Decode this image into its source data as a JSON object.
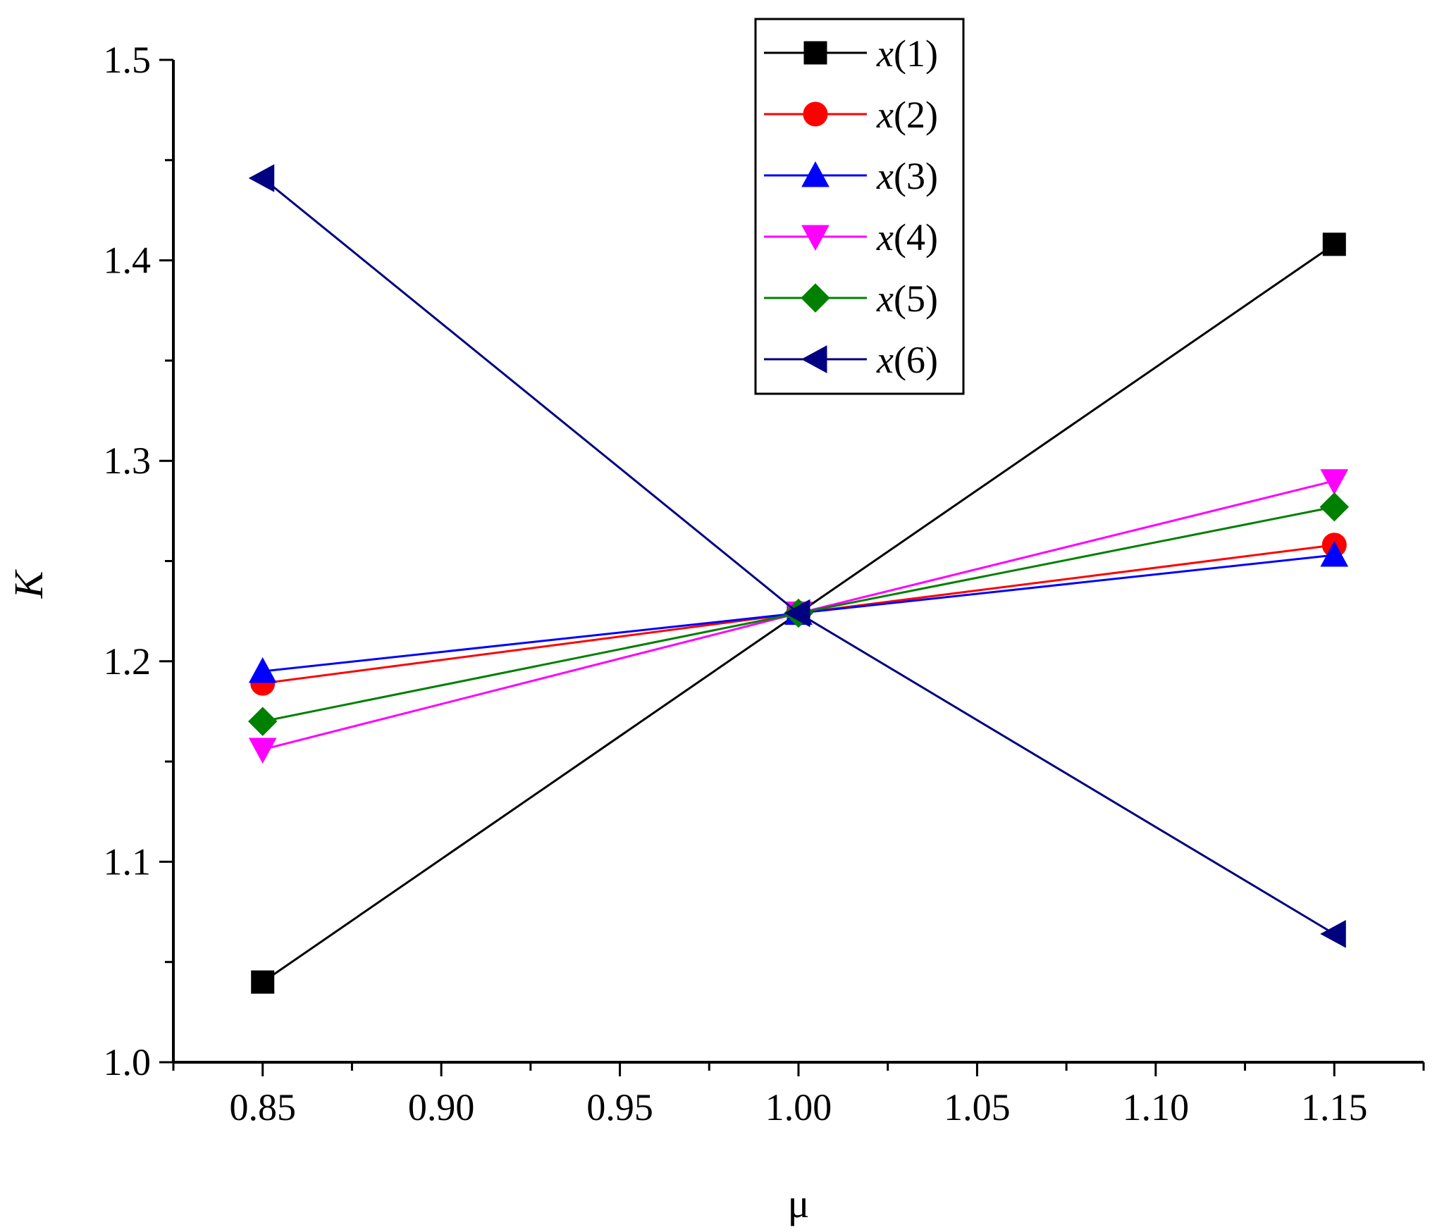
{
  "chart_data": {
    "type": "line",
    "title": "",
    "xlabel": "μ",
    "ylabel": "K",
    "x": [
      0.85,
      1.0,
      1.15
    ],
    "xlim": [
      0.825,
      1.175
    ],
    "ylim": [
      1.0,
      1.5
    ],
    "xticks": [
      0.85,
      0.9,
      0.95,
      1.0,
      1.05,
      1.1,
      1.15
    ],
    "xtick_labels": [
      "0.85",
      "0.90",
      "0.95",
      "1.00",
      "1.05",
      "1.10",
      "1.15"
    ],
    "yticks": [
      1.0,
      1.1,
      1.2,
      1.3,
      1.4,
      1.5
    ],
    "ytick_labels": [
      "1.0",
      "1.1",
      "1.2",
      "1.3",
      "1.4",
      "1.5"
    ],
    "grid": false,
    "legend_position": "top-center",
    "series": [
      {
        "name": "x(1)",
        "var": "x",
        "index": "(1)",
        "color": "#000000",
        "marker": "square",
        "values": [
          1.04,
          1.224,
          1.408
        ]
      },
      {
        "name": "x(2)",
        "var": "x",
        "index": "(2)",
        "color": "#ff0000",
        "marker": "circle",
        "values": [
          1.189,
          1.224,
          1.258
        ]
      },
      {
        "name": "x(3)",
        "var": "x",
        "index": "(3)",
        "color": "#0000ff",
        "marker": "triangle-up",
        "values": [
          1.195,
          1.224,
          1.253
        ]
      },
      {
        "name": "x(4)",
        "var": "x",
        "index": "(4)",
        "color": "#ff00ff",
        "marker": "triangle-down",
        "values": [
          1.156,
          1.224,
          1.29
        ]
      },
      {
        "name": "x(5)",
        "var": "x",
        "index": "(5)",
        "color": "#008000",
        "marker": "diamond",
        "values": [
          1.17,
          1.224,
          1.277
        ]
      },
      {
        "name": "x(6)",
        "var": "x",
        "index": "(6)",
        "color": "#000080",
        "marker": "triangle-left",
        "values": [
          1.441,
          1.224,
          1.064
        ]
      }
    ]
  }
}
